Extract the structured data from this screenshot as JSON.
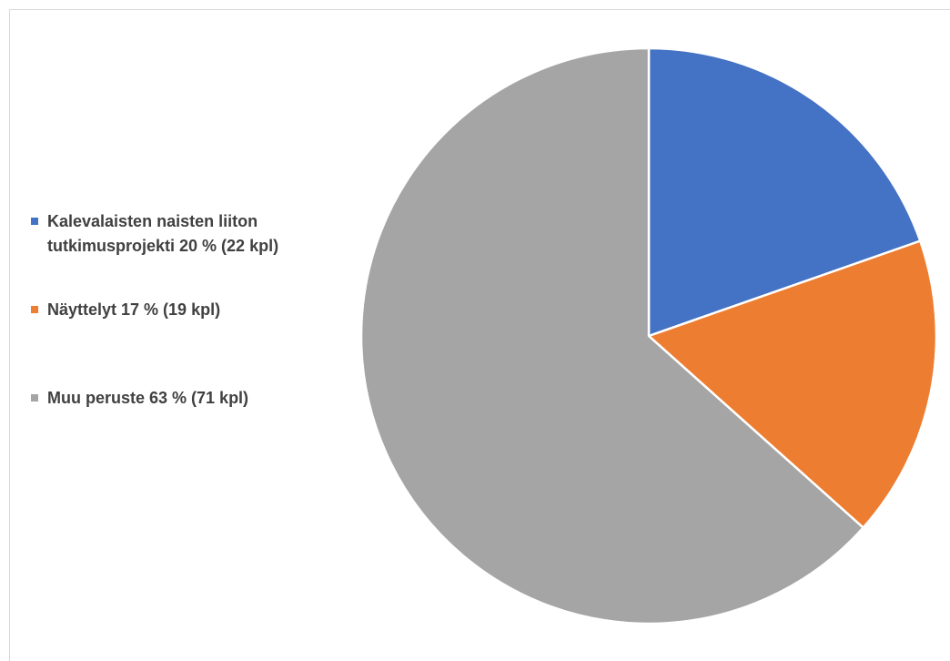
{
  "chart_data": {
    "type": "pie",
    "title": "",
    "legend_position": "left",
    "slices": [
      {
        "label": "Kalevalaisten naisten liiton tutkimusprojekti 20 % (22 kpl)",
        "value": 22,
        "percent": 20,
        "color": "#4472c4"
      },
      {
        "label": "Näyttelyt 17 % (19 kpl)",
        "value": 19,
        "percent": 17,
        "color": "#ed7d31"
      },
      {
        "label": "Muu peruste 63 % (71 kpl)",
        "value": 71,
        "percent": 63,
        "color": "#a5a5a5"
      }
    ]
  }
}
